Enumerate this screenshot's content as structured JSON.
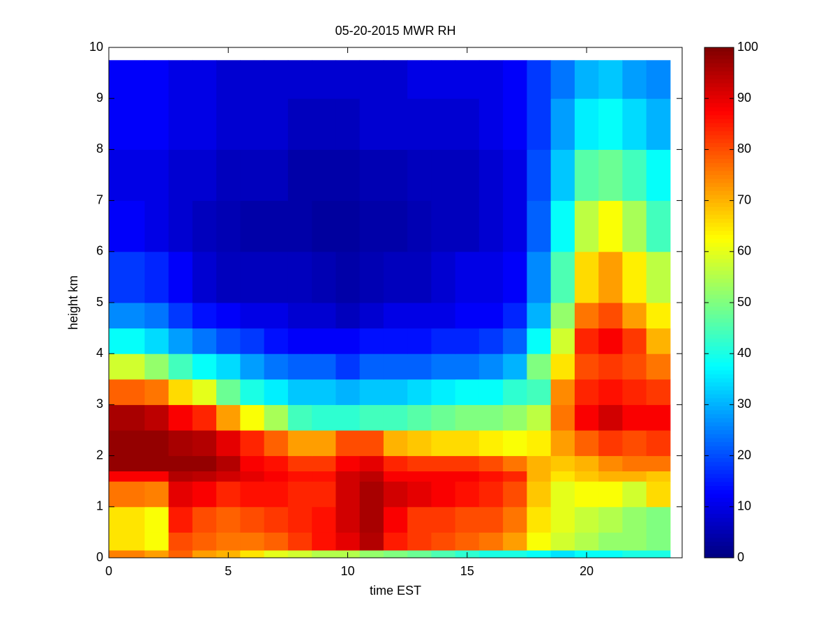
{
  "chart_data": {
    "type": "heatmap",
    "title": "05-20-2015 MWR RH",
    "xlabel": "time EST",
    "ylabel": "height km",
    "xlim": [
      0,
      24
    ],
    "xticks": [
      0,
      5,
      10,
      15,
      20
    ],
    "ylim": [
      0,
      10
    ],
    "yticks": [
      0,
      1,
      2,
      3,
      4,
      5,
      6,
      7,
      8,
      9,
      10
    ],
    "clim": [
      0,
      100
    ],
    "cticks": [
      0,
      10,
      20,
      30,
      40,
      50,
      60,
      70,
      80,
      90,
      100
    ],
    "colormap": "jet",
    "x_bins": [
      0,
      1.5,
      2.5,
      3.5,
      4.5,
      5.5,
      6.5,
      7.5,
      8.5,
      9.5,
      10.5,
      11.5,
      12.5,
      13.5,
      14.5,
      15.5,
      16.5,
      17.5,
      18.5,
      19.5,
      20.5,
      21.5,
      22.5,
      23.5
    ],
    "y_bins": [
      0,
      0.15,
      0.5,
      1,
      1.5,
      1.7,
      2,
      2.5,
      3,
      3.5,
      4,
      4.5,
      5,
      6,
      7,
      8,
      9,
      9.75
    ],
    "z": [
      [
        75,
        72,
        78,
        72,
        70,
        65,
        60,
        58,
        55,
        55,
        52,
        50,
        48,
        45,
        42,
        40,
        40,
        38,
        35,
        38,
        38,
        40,
        40
      ],
      [
        65,
        62,
        80,
        78,
        76,
        76,
        78,
        82,
        86,
        90,
        95,
        85,
        82,
        80,
        78,
        76,
        72,
        62,
        58,
        55,
        52,
        52,
        50
      ],
      [
        65,
        62,
        85,
        80,
        78,
        80,
        82,
        84,
        86,
        92,
        96,
        88,
        82,
        82,
        80,
        80,
        76,
        65,
        60,
        57,
        55,
        52,
        50
      ],
      [
        76,
        75,
        90,
        88,
        84,
        86,
        86,
        84,
        84,
        92,
        96,
        92,
        90,
        88,
        86,
        84,
        80,
        68,
        60,
        62,
        62,
        58,
        66
      ],
      [
        88,
        88,
        95,
        94,
        92,
        90,
        88,
        86,
        86,
        92,
        94,
        88,
        88,
        88,
        88,
        86,
        84,
        70,
        65,
        68,
        70,
        70,
        68
      ],
      [
        98,
        98,
        98,
        98,
        95,
        88,
        86,
        82,
        82,
        88,
        90,
        84,
        82,
        82,
        82,
        80,
        76,
        70,
        68,
        70,
        74,
        76,
        76
      ],
      [
        98,
        98,
        96,
        95,
        90,
        84,
        78,
        72,
        72,
        80,
        80,
        70,
        68,
        66,
        66,
        64,
        62,
        64,
        72,
        78,
        82,
        80,
        82
      ],
      [
        96,
        94,
        88,
        84,
        72,
        62,
        54,
        44,
        42,
        42,
        44,
        44,
        46,
        48,
        50,
        50,
        52,
        56,
        76,
        88,
        92,
        88,
        88
      ],
      [
        78,
        76,
        66,
        60,
        48,
        40,
        36,
        32,
        32,
        30,
        32,
        32,
        34,
        36,
        38,
        38,
        42,
        44,
        74,
        84,
        86,
        84,
        82
      ],
      [
        58,
        52,
        44,
        38,
        34,
        28,
        24,
        22,
        22,
        18,
        22,
        22,
        22,
        24,
        24,
        26,
        30,
        50,
        65,
        80,
        82,
        80,
        76
      ],
      [
        38,
        34,
        28,
        24,
        20,
        18,
        14,
        12,
        12,
        12,
        14,
        14,
        14,
        16,
        16,
        18,
        22,
        38,
        58,
        84,
        88,
        82,
        70
      ],
      [
        26,
        24,
        18,
        14,
        12,
        10,
        10,
        8,
        8,
        6,
        8,
        10,
        10,
        10,
        12,
        12,
        16,
        30,
        52,
        76,
        80,
        72,
        64
      ],
      [
        18,
        16,
        12,
        8,
        6,
        6,
        6,
        6,
        5,
        4,
        5,
        6,
        6,
        8,
        10,
        10,
        12,
        26,
        45,
        66,
        72,
        64,
        56
      ],
      [
        12,
        10,
        8,
        6,
        5,
        4,
        4,
        4,
        3,
        3,
        4,
        4,
        5,
        6,
        6,
        8,
        10,
        22,
        38,
        56,
        62,
        54,
        44
      ],
      [
        10,
        10,
        8,
        8,
        6,
        6,
        6,
        4,
        4,
        4,
        5,
        5,
        6,
        6,
        6,
        8,
        10,
        20,
        32,
        46,
        48,
        44,
        38
      ],
      [
        12,
        12,
        10,
        10,
        8,
        8,
        8,
        6,
        6,
        6,
        8,
        8,
        8,
        8,
        8,
        10,
        12,
        18,
        28,
        36,
        38,
        34,
        30
      ],
      [
        12,
        12,
        10,
        10,
        8,
        8,
        8,
        8,
        8,
        8,
        8,
        8,
        10,
        10,
        10,
        10,
        12,
        18,
        24,
        30,
        32,
        28,
        26
      ]
    ]
  }
}
